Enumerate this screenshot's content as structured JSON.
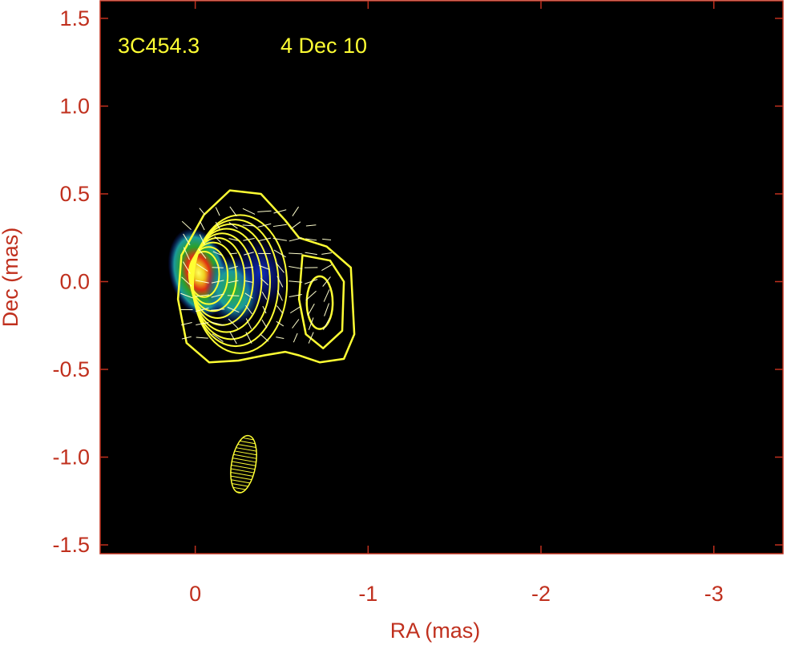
{
  "chart_data": {
    "type": "heatmap",
    "title": "",
    "xlabel": "RA (mas)",
    "ylabel": "Dec (mas)",
    "xlim": [
      0.55,
      -3.4
    ],
    "ylim": [
      -1.55,
      1.6
    ],
    "x_ticks": [
      {
        "value": 0,
        "label": "0"
      },
      {
        "value": -1,
        "label": "-1"
      },
      {
        "value": -2,
        "label": "-2"
      },
      {
        "value": -3,
        "label": "-3"
      }
    ],
    "y_ticks": [
      {
        "value": 1.5,
        "label": "1.5"
      },
      {
        "value": 1.0,
        "label": "1.0"
      },
      {
        "value": 0.5,
        "label": "0.5"
      },
      {
        "value": 0.0,
        "label": "0.0"
      },
      {
        "value": -0.5,
        "label": "-0.5"
      },
      {
        "value": -1.0,
        "label": "-1.0"
      },
      {
        "value": -1.5,
        "label": "-1.5"
      }
    ],
    "annotations": {
      "source": "3C454.3",
      "epoch": "4 Dec 10"
    },
    "colormap": [
      "#0a1ab0",
      "#1a9a9a",
      "#2aa02a",
      "#e8e020",
      "#e03010"
    ],
    "intensity_peaks": [
      {
        "ra": -0.02,
        "dec": 0.05,
        "level": 1.0
      },
      {
        "ra": -0.22,
        "dec": -0.05,
        "level": 0.55
      },
      {
        "ra": -0.38,
        "dec": 0.05,
        "level": 0.25
      }
    ],
    "beam": {
      "ra": -0.28,
      "dec": -1.04,
      "major": 0.33,
      "minor": 0.14,
      "pa_deg": 10
    },
    "colors": {
      "frame": "#c0301e",
      "contours": "#ffff33",
      "vectors": "#ffffcc",
      "background": "#000000"
    },
    "grid": false
  }
}
